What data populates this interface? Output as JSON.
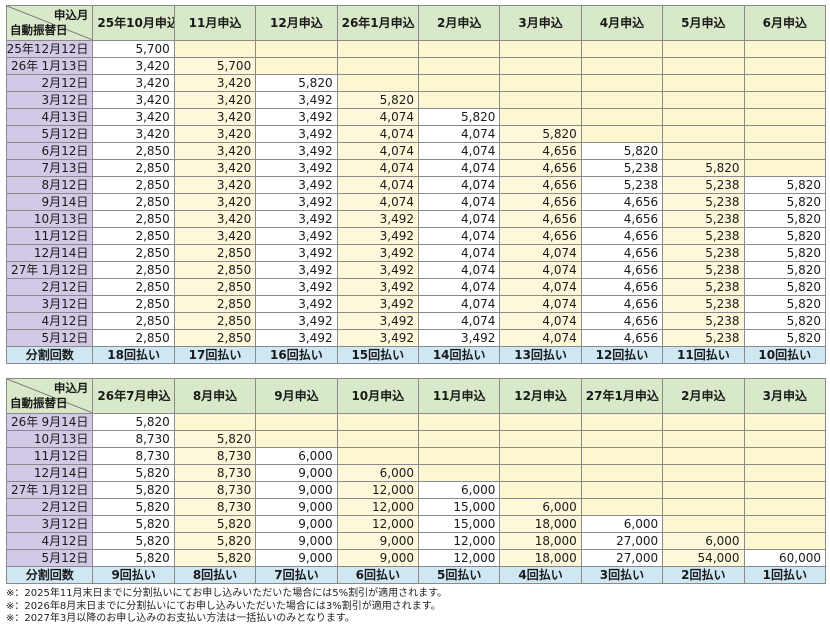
{
  "corner": {
    "top": "申込月",
    "bottom": "自動振替日"
  },
  "installments_label": "分割回数",
  "table1": {
    "months": [
      "25年10月申込",
      "11月申込",
      "12月申込",
      "26年1月申込",
      "2月申込",
      "3月申込",
      "4月申込",
      "5月申込",
      "6月申込"
    ],
    "rows": [
      {
        "y": "",
        "d": "25年12月12日",
        "v": [
          "5,700",
          "",
          "",
          "",
          "",
          "",
          "",
          "",
          ""
        ]
      },
      {
        "y": "26年",
        "d": "1月13日",
        "v": [
          "3,420",
          "5,700",
          "",
          "",
          "",
          "",
          "",
          "",
          ""
        ]
      },
      {
        "y": "",
        "d": "2月12日",
        "v": [
          "3,420",
          "3,420",
          "5,820",
          "",
          "",
          "",
          "",
          "",
          ""
        ]
      },
      {
        "y": "",
        "d": "3月12日",
        "v": [
          "3,420",
          "3,420",
          "3,492",
          "5,820",
          "",
          "",
          "",
          "",
          ""
        ]
      },
      {
        "y": "",
        "d": "4月13日",
        "v": [
          "3,420",
          "3,420",
          "3,492",
          "4,074",
          "5,820",
          "",
          "",
          "",
          ""
        ]
      },
      {
        "y": "",
        "d": "5月12日",
        "v": [
          "3,420",
          "3,420",
          "3,492",
          "4,074",
          "4,074",
          "5,820",
          "",
          "",
          ""
        ]
      },
      {
        "y": "",
        "d": "6月12日",
        "v": [
          "2,850",
          "3,420",
          "3,492",
          "4,074",
          "4,074",
          "4,656",
          "5,820",
          "",
          ""
        ]
      },
      {
        "y": "",
        "d": "7月13日",
        "v": [
          "2,850",
          "3,420",
          "3,492",
          "4,074",
          "4,074",
          "4,656",
          "5,238",
          "5,820",
          ""
        ]
      },
      {
        "y": "",
        "d": "8月12日",
        "v": [
          "2,850",
          "3,420",
          "3,492",
          "4,074",
          "4,074",
          "4,656",
          "5,238",
          "5,238",
          "5,820"
        ]
      },
      {
        "y": "",
        "d": "9月14日",
        "v": [
          "2,850",
          "3,420",
          "3,492",
          "4,074",
          "4,074",
          "4,656",
          "4,656",
          "5,238",
          "5,820"
        ]
      },
      {
        "y": "",
        "d": "10月13日",
        "v": [
          "2,850",
          "3,420",
          "3,492",
          "3,492",
          "4,074",
          "4,656",
          "4,656",
          "5,238",
          "5,820"
        ]
      },
      {
        "y": "",
        "d": "11月12日",
        "v": [
          "2,850",
          "3,420",
          "3,492",
          "3,492",
          "4,074",
          "4,656",
          "4,656",
          "5,238",
          "5,820"
        ]
      },
      {
        "y": "",
        "d": "12月14日",
        "v": [
          "2,850",
          "2,850",
          "3,492",
          "3,492",
          "4,074",
          "4,074",
          "4,656",
          "5,238",
          "5,820"
        ]
      },
      {
        "y": "27年",
        "d": "1月12日",
        "v": [
          "2,850",
          "2,850",
          "3,492",
          "3,492",
          "4,074",
          "4,074",
          "4,656",
          "5,238",
          "5,820"
        ]
      },
      {
        "y": "",
        "d": "2月12日",
        "v": [
          "2,850",
          "2,850",
          "3,492",
          "3,492",
          "4,074",
          "4,074",
          "4,656",
          "5,238",
          "5,820"
        ]
      },
      {
        "y": "",
        "d": "3月12日",
        "v": [
          "2,850",
          "2,850",
          "3,492",
          "3,492",
          "4,074",
          "4,074",
          "4,656",
          "5,238",
          "5,820"
        ]
      },
      {
        "y": "",
        "d": "4月12日",
        "v": [
          "2,850",
          "2,850",
          "3,492",
          "3,492",
          "4,074",
          "4,074",
          "4,656",
          "5,238",
          "5,820"
        ]
      },
      {
        "y": "",
        "d": "5月12日",
        "v": [
          "2,850",
          "2,850",
          "3,492",
          "3,492",
          "3,492",
          "4,074",
          "4,656",
          "5,238",
          "5,820"
        ]
      }
    ],
    "installments": [
      "18回払い",
      "17回払い",
      "16回払い",
      "15回払い",
      "14回払い",
      "13回払い",
      "12回払い",
      "11回払い",
      "10回払い"
    ]
  },
  "table2": {
    "months": [
      "26年7月申込",
      "8月申込",
      "9月申込",
      "10月申込",
      "11月申込",
      "12月申込",
      "27年1月申込",
      "2月申込",
      "3月申込"
    ],
    "rows": [
      {
        "y": "26年",
        "d": "9月14日",
        "v": [
          "5,820",
          "",
          "",
          "",
          "",
          "",
          "",
          "",
          ""
        ]
      },
      {
        "y": "",
        "d": "10月13日",
        "v": [
          "8,730",
          "5,820",
          "",
          "",
          "",
          "",
          "",
          "",
          ""
        ]
      },
      {
        "y": "",
        "d": "11月12日",
        "v": [
          "8,730",
          "8,730",
          "6,000",
          "",
          "",
          "",
          "",
          "",
          ""
        ]
      },
      {
        "y": "",
        "d": "12月14日",
        "v": [
          "5,820",
          "8,730",
          "9,000",
          "6,000",
          "",
          "",
          "",
          "",
          ""
        ]
      },
      {
        "y": "27年",
        "d": "1月12日",
        "v": [
          "5,820",
          "8,730",
          "9,000",
          "12,000",
          "6,000",
          "",
          "",
          "",
          ""
        ]
      },
      {
        "y": "",
        "d": "2月12日",
        "v": [
          "5,820",
          "8,730",
          "9,000",
          "12,000",
          "15,000",
          "6,000",
          "",
          "",
          ""
        ]
      },
      {
        "y": "",
        "d": "3月12日",
        "v": [
          "5,820",
          "5,820",
          "9,000",
          "12,000",
          "15,000",
          "18,000",
          "6,000",
          "",
          ""
        ]
      },
      {
        "y": "",
        "d": "4月12日",
        "v": [
          "5,820",
          "5,820",
          "9,000",
          "9,000",
          "12,000",
          "18,000",
          "27,000",
          "6,000",
          ""
        ]
      },
      {
        "y": "",
        "d": "5月12日",
        "v": [
          "5,820",
          "5,820",
          "9,000",
          "9,000",
          "12,000",
          "18,000",
          "27,000",
          "54,000",
          "60,000"
        ]
      }
    ],
    "installments": [
      "9回払い",
      "8回払い",
      "7回払い",
      "6回払い",
      "5回払い",
      "4回払い",
      "3回払い",
      "2回払い",
      "1回払い"
    ]
  },
  "notes": [
    "※：2025年11月末日までに分割払いにてお申し込みいただいた場合には5%割引が適用されます。",
    "※：2026年8月末日までに分割払いにてお申し込みいただいた場合には3%割引が適用されます。",
    "※：2027年3月以降のお申し込みのお支払い方法は一括払いのみとなります。"
  ]
}
